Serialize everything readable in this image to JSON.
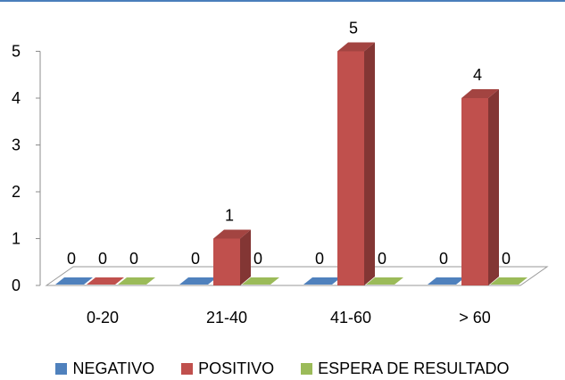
{
  "chart_data": {
    "type": "bar",
    "categories": [
      "0-20",
      "21-40",
      "41-60",
      "> 60"
    ],
    "series": [
      {
        "name": "NEGATIVO",
        "values": [
          0,
          0,
          0,
          0
        ],
        "color": "#4f81bd"
      },
      {
        "name": "POSITIVO",
        "values": [
          0,
          1,
          5,
          4
        ],
        "color": "#c0504d"
      },
      {
        "name": "ESPERA DE RESULTADO",
        "values": [
          0,
          0,
          0,
          0
        ],
        "color": "#9bbb59"
      }
    ],
    "yticks": [
      "0",
      "1",
      "2",
      "3",
      "4",
      "5"
    ],
    "ylim": [
      0,
      5
    ],
    "legend_position": "bottom",
    "grid": false,
    "three_d": true
  }
}
